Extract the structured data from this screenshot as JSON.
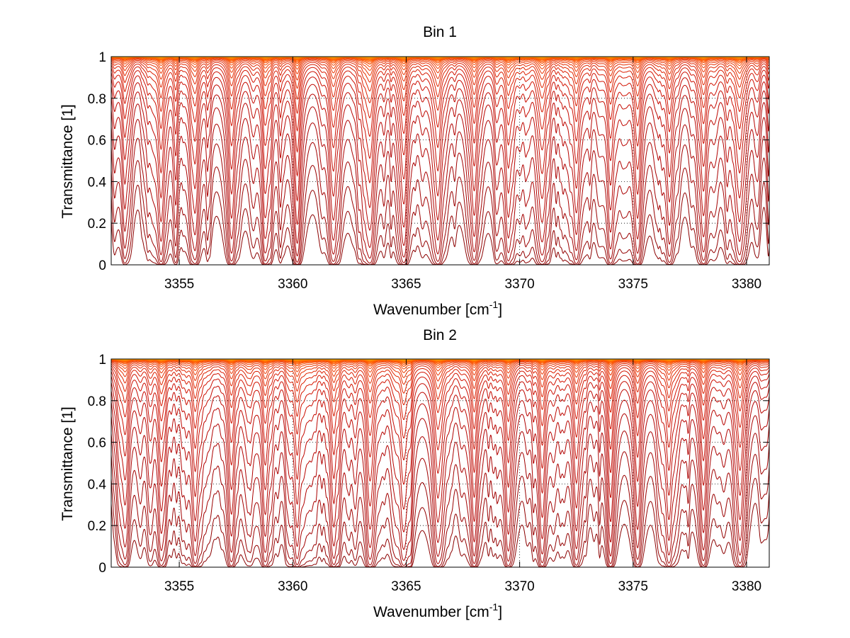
{
  "chart_data": [
    {
      "type": "line",
      "title": "Bin 1",
      "xlabel": "Wavenumber [cm",
      "xlabel_superscript": "-1",
      "xlabel_suffix": "]",
      "ylabel": "Transmittance [1]",
      "xlim": [
        3352,
        3381
      ],
      "ylim": [
        0,
        1
      ],
      "xticks": [
        3355,
        3360,
        3365,
        3370,
        3375,
        3380
      ],
      "xtick_labels": [
        "3355",
        "3360",
        "3365",
        "3370",
        "3375",
        "3380"
      ],
      "yticks": [
        0,
        0.2,
        0.4,
        0.6,
        0.8,
        1
      ],
      "ytick_labels": [
        "0",
        "0.2",
        "0.4",
        "0.6",
        "0.8",
        "1"
      ],
      "grid": "dotted",
      "series_count": 30,
      "line_colors": [
        "#8b0000",
        "#b00000",
        "#d01000",
        "#e83000",
        "#ff5a00",
        "#ff8c00",
        "#ffb000"
      ],
      "absorption_lines": [
        {
          "wavenumber": 3352.6,
          "depth": 0.6,
          "width": 0.12
        },
        {
          "wavenumber": 3354.2,
          "depth": 0.8,
          "width": 0.13
        },
        {
          "wavenumber": 3355.7,
          "depth": 0.9,
          "width": 0.14
        },
        {
          "wavenumber": 3357.3,
          "depth": 0.85,
          "width": 0.14
        },
        {
          "wavenumber": 3358.8,
          "depth": 0.85,
          "width": 0.14
        },
        {
          "wavenumber": 3360.2,
          "depth": 0.95,
          "width": 0.13
        },
        {
          "wavenumber": 3361.8,
          "depth": 1.0,
          "width": 0.15
        },
        {
          "wavenumber": 3363.4,
          "depth": 1.0,
          "width": 0.15
        },
        {
          "wavenumber": 3364.9,
          "depth": 1.0,
          "width": 0.15
        },
        {
          "wavenumber": 3366.4,
          "depth": 1.0,
          "width": 0.15
        },
        {
          "wavenumber": 3368.0,
          "depth": 0.95,
          "width": 0.14
        },
        {
          "wavenumber": 3369.5,
          "depth": 0.95,
          "width": 0.14
        },
        {
          "wavenumber": 3371.0,
          "depth": 0.9,
          "width": 0.14
        },
        {
          "wavenumber": 3372.5,
          "depth": 0.9,
          "width": 0.14
        },
        {
          "wavenumber": 3374.0,
          "depth": 0.8,
          "width": 0.13
        },
        {
          "wavenumber": 3375.2,
          "depth": 0.85,
          "width": 0.14
        },
        {
          "wavenumber": 3376.6,
          "depth": 0.75,
          "width": 0.13
        },
        {
          "wavenumber": 3378.1,
          "depth": 0.9,
          "width": 0.14
        },
        {
          "wavenumber": 3379.7,
          "depth": 0.95,
          "width": 0.14
        }
      ]
    },
    {
      "type": "line",
      "title": "Bin 2",
      "xlabel": "Wavenumber [cm",
      "xlabel_superscript": "-1",
      "xlabel_suffix": "]",
      "ylabel": "Transmittance [1]",
      "xlim": [
        3352,
        3381
      ],
      "ylim": [
        0,
        1
      ],
      "xticks": [
        3355,
        3360,
        3365,
        3370,
        3375,
        3380
      ],
      "xtick_labels": [
        "3355",
        "3360",
        "3365",
        "3370",
        "3375",
        "3380"
      ],
      "yticks": [
        0,
        0.2,
        0.4,
        0.6,
        0.8,
        1
      ],
      "ytick_labels": [
        "0",
        "0.2",
        "0.4",
        "0.6",
        "0.8",
        "1"
      ],
      "grid": "dotted",
      "series_count": 30,
      "line_colors": [
        "#8b0000",
        "#b00000",
        "#d01000",
        "#e83000",
        "#ff5a00",
        "#ff8c00",
        "#ffb000"
      ],
      "absorption_lines": [
        {
          "wavenumber": 3352.6,
          "depth": 0.55,
          "width": 0.12
        },
        {
          "wavenumber": 3354.2,
          "depth": 0.75,
          "width": 0.13
        },
        {
          "wavenumber": 3355.7,
          "depth": 0.9,
          "width": 0.14
        },
        {
          "wavenumber": 3357.3,
          "depth": 0.85,
          "width": 0.14
        },
        {
          "wavenumber": 3358.8,
          "depth": 0.85,
          "width": 0.14
        },
        {
          "wavenumber": 3360.2,
          "depth": 0.95,
          "width": 0.13
        },
        {
          "wavenumber": 3361.8,
          "depth": 1.0,
          "width": 0.15
        },
        {
          "wavenumber": 3363.4,
          "depth": 1.0,
          "width": 0.15
        },
        {
          "wavenumber": 3364.9,
          "depth": 1.0,
          "width": 0.15
        },
        {
          "wavenumber": 3366.4,
          "depth": 1.0,
          "width": 0.15
        },
        {
          "wavenumber": 3368.0,
          "depth": 0.95,
          "width": 0.14
        },
        {
          "wavenumber": 3369.5,
          "depth": 0.9,
          "width": 0.14
        },
        {
          "wavenumber": 3371.0,
          "depth": 0.9,
          "width": 0.14
        },
        {
          "wavenumber": 3372.5,
          "depth": 0.85,
          "width": 0.14
        },
        {
          "wavenumber": 3374.0,
          "depth": 0.8,
          "width": 0.13
        },
        {
          "wavenumber": 3375.2,
          "depth": 0.85,
          "width": 0.14
        },
        {
          "wavenumber": 3376.6,
          "depth": 0.8,
          "width": 0.13
        },
        {
          "wavenumber": 3378.1,
          "depth": 0.9,
          "width": 0.14
        },
        {
          "wavenumber": 3379.7,
          "depth": 0.95,
          "width": 0.14
        }
      ]
    }
  ]
}
